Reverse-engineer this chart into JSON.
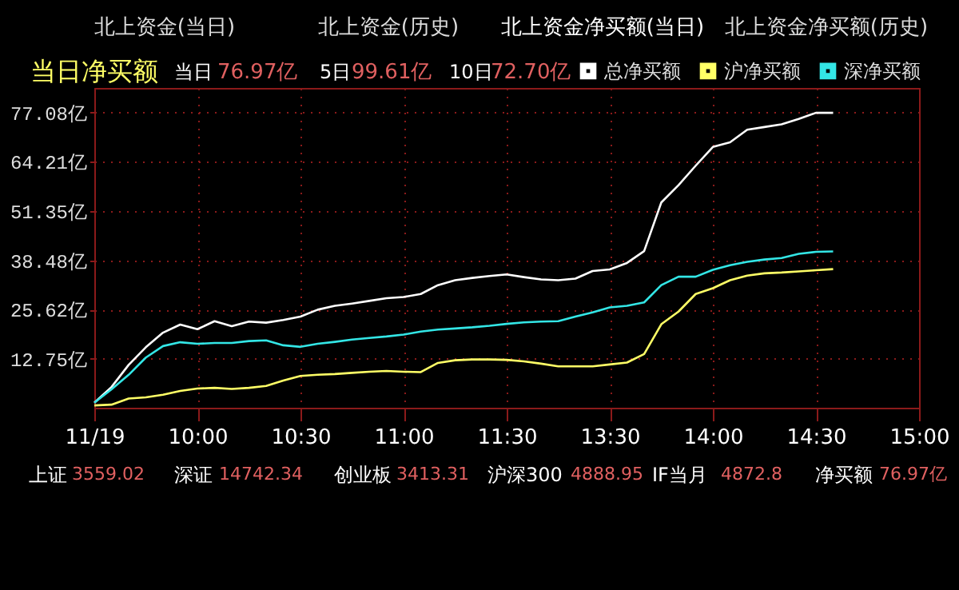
{
  "chart_data": {
    "type": "line",
    "title": "当日净买额",
    "categories": [
      "11/19",
      null,
      null,
      null,
      null,
      null,
      "10:00",
      null,
      null,
      null,
      null,
      null,
      "10:30",
      null,
      null,
      null,
      null,
      null,
      "11:00",
      null,
      null,
      null,
      null,
      null,
      "11:30",
      null,
      null,
      null,
      null,
      null,
      "13:30",
      null,
      null,
      null,
      null,
      null,
      "14:00",
      null,
      null,
      null,
      null,
      null,
      "14:30",
      null,
      null,
      null,
      null,
      null,
      "15:00"
    ],
    "series": [
      {
        "name": "总净买额",
        "color": "#ffffff",
        "values": [
          1.3,
          5.4,
          11.2,
          15.8,
          19.6,
          21.7,
          20.5,
          22.6,
          21.3,
          22.5,
          22.2,
          22.9,
          23.8,
          25.6,
          26.6,
          27.2,
          27.9,
          28.6,
          28.9,
          29.7,
          32.0,
          33.3,
          33.9,
          34.4,
          34.8,
          34.1,
          33.5,
          33.3,
          33.7,
          35.7,
          36.1,
          37.8,
          40.9,
          53.6,
          58.1,
          63.2,
          68.1,
          69.3,
          72.6,
          73.3,
          74.0,
          75.4,
          77.0,
          77.0,
          null,
          null,
          null,
          null,
          null
        ]
      },
      {
        "name": "沪净买额",
        "color": "#ffff66",
        "values": [
          0.6,
          0.8,
          2.4,
          2.7,
          3.4,
          4.4,
          5.0,
          5.2,
          4.9,
          5.2,
          5.7,
          7.1,
          8.3,
          8.6,
          8.8,
          9.1,
          9.4,
          9.6,
          9.4,
          9.3,
          11.7,
          12.4,
          12.6,
          12.6,
          12.5,
          12.1,
          11.5,
          10.8,
          10.8,
          10.8,
          11.3,
          11.8,
          14.0,
          21.8,
          25.1,
          29.7,
          31.2,
          33.3,
          34.5,
          35.1,
          35.3,
          35.6,
          35.9,
          36.2,
          null,
          null,
          null,
          null,
          null
        ]
      },
      {
        "name": "深净买额",
        "color": "#33e6e6",
        "values": [
          1.3,
          4.8,
          8.6,
          13.1,
          16.1,
          17.1,
          16.7,
          16.9,
          16.9,
          17.4,
          17.6,
          16.3,
          15.9,
          16.7,
          17.2,
          17.8,
          18.2,
          18.6,
          19.1,
          19.9,
          20.4,
          20.7,
          21.0,
          21.4,
          21.9,
          22.3,
          22.5,
          22.6,
          23.8,
          24.9,
          26.2,
          26.6,
          27.5,
          32.0,
          34.2,
          34.2,
          36.0,
          37.2,
          38.1,
          38.7,
          39.1,
          40.2,
          40.7,
          40.8,
          null,
          null,
          null,
          null,
          null
        ]
      }
    ],
    "ylim": [
      0,
      83.5
    ],
    "yticks": [
      {
        "value": 12.75,
        "label": "12.75亿"
      },
      {
        "value": 25.62,
        "label": "25.62亿"
      },
      {
        "value": 38.48,
        "label": "38.48亿"
      },
      {
        "value": 51.35,
        "label": "51.35亿"
      },
      {
        "value": 64.21,
        "label": "64.21亿"
      },
      {
        "value": 77.08,
        "label": "77.08亿"
      }
    ],
    "grid": true,
    "legend": "top right",
    "marker": "none",
    "line_style": "solid",
    "annotations": [
      "北上资金(当日)",
      "北上资金(历史)",
      "北上资金净买额(当日)",
      "北上资金净买额(历史)",
      "当日",
      "76.97亿",
      "5日",
      "99.61亿",
      "10日",
      "72.70亿",
      "上证",
      "3559.02",
      "深证",
      "14742.34",
      "创业板",
      "3413.31",
      "沪深300",
      "4888.95",
      "IF当月",
      "4872.8",
      "净买额",
      "76.97亿"
    ]
  }
}
